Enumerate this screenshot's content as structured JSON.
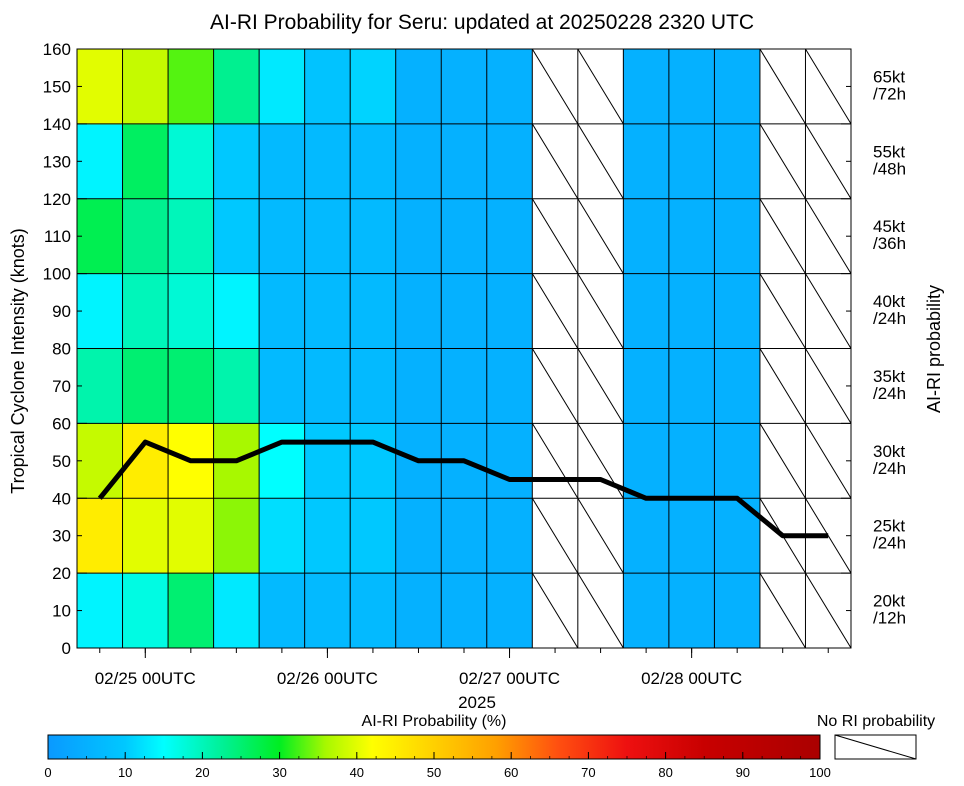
{
  "chart_data": {
    "type": "heatmap",
    "title": "AI-RI Probability for Seru: updated at 20250228 2320 UTC",
    "ylabel": "Tropical Cyclone Intensity (knots)",
    "y2label": "AI-RI probability",
    "xlabel_year": "2025",
    "ylim": [
      0,
      160
    ],
    "yticks": [
      0,
      10,
      20,
      30,
      40,
      50,
      60,
      70,
      80,
      90,
      100,
      110,
      120,
      130,
      140,
      150,
      160
    ],
    "xtick_labels": [
      "02/25 00UTC",
      "02/26 00UTC",
      "02/27 00UTC",
      "02/28 00UTC"
    ],
    "xtick_label_cols": [
      1.5,
      5.5,
      9.5,
      13.5
    ],
    "n_columns": 17,
    "intensity_bands": [
      {
        "label": "20kt\n/12h",
        "y0": 0,
        "y1": 20
      },
      {
        "label": "25kt\n/24h",
        "y0": 20,
        "y1": 40
      },
      {
        "label": "30kt\n/24h",
        "y0": 40,
        "y1": 60
      },
      {
        "label": "35kt\n/24h",
        "y0": 60,
        "y1": 80
      },
      {
        "label": "40kt\n/24h",
        "y0": 80,
        "y1": 100
      },
      {
        "label": "45kt\n/36h",
        "y0": 100,
        "y1": 120
      },
      {
        "label": "55kt\n/48h",
        "y0": 120,
        "y1": 140
      },
      {
        "label": "65kt\n/72h",
        "y0": 140,
        "y1": 160
      }
    ],
    "probabilities": [
      [
        14,
        17,
        25,
        13,
        7,
        7,
        7,
        5,
        5,
        5,
        null,
        null,
        5,
        5,
        5,
        null,
        null
      ],
      [
        45,
        40,
        40,
        35,
        12,
        10,
        10,
        5,
        5,
        5,
        null,
        null,
        5,
        5,
        5,
        null,
        null
      ],
      [
        38,
        45,
        42,
        36,
        15,
        10,
        10,
        5,
        5,
        5,
        null,
        null,
        5,
        5,
        5,
        null,
        null
      ],
      [
        21,
        25,
        25,
        21,
        7,
        7,
        7,
        5,
        5,
        5,
        null,
        null,
        5,
        5,
        5,
        null,
        null
      ],
      [
        14,
        20,
        18,
        14,
        7,
        7,
        7,
        5,
        5,
        5,
        null,
        null,
        5,
        5,
        5,
        null,
        null
      ],
      [
        27,
        23,
        20,
        10,
        7,
        7,
        7,
        5,
        5,
        5,
        null,
        null,
        5,
        5,
        5,
        null,
        null
      ],
      [
        14,
        26,
        18,
        10,
        7,
        7,
        7,
        5,
        5,
        5,
        null,
        null,
        5,
        5,
        5,
        null,
        null
      ],
      [
        40,
        38,
        33,
        23,
        13,
        9,
        11,
        5,
        5,
        5,
        null,
        null,
        5,
        5,
        5,
        null,
        null
      ]
    ],
    "intensity_line": {
      "x_cols": [
        0.5,
        1.5,
        2.5,
        3.5,
        4.5,
        5.5,
        6.5,
        7.5,
        8.5,
        9.5,
        10.5,
        11.5,
        12.5,
        13.5,
        14.5,
        15.5,
        16.5
      ],
      "values": [
        40,
        55,
        50,
        50,
        55,
        55,
        55,
        50,
        50,
        45,
        45,
        45,
        40,
        40,
        40,
        30,
        30
      ]
    },
    "colorbar": {
      "label": "AI-RI Probability (%)",
      "min": 0,
      "max": 100,
      "ticks": [
        0,
        10,
        20,
        30,
        40,
        50,
        60,
        70,
        80,
        90,
        100
      ],
      "no_data_label": "No RI probability"
    }
  }
}
